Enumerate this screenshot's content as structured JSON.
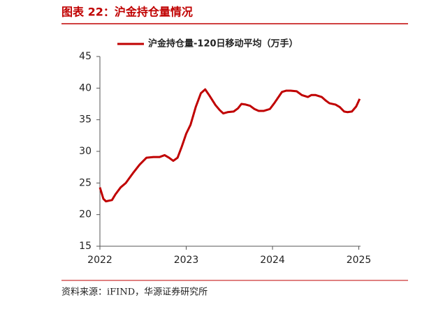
{
  "chart_data": {
    "type": "line",
    "title": "图表 22：沪金持仓量情况",
    "source": "资料来源：iFIND，华源证券研究所",
    "x": [
      2022.0,
      2022.04,
      2022.07,
      2022.14,
      2022.18,
      2022.24,
      2022.3,
      2022.38,
      2022.46,
      2022.54,
      2022.62,
      2022.69,
      2022.75,
      2022.8,
      2022.85,
      2022.9,
      2022.95,
      2023.0,
      2023.05,
      2023.11,
      2023.17,
      2023.22,
      2023.27,
      2023.34,
      2023.39,
      2023.43,
      2023.48,
      2023.55,
      2023.6,
      2023.64,
      2023.69,
      2023.74,
      2023.79,
      2023.84,
      2023.9,
      2023.97,
      2024.02,
      2024.07,
      2024.11,
      2024.16,
      2024.21,
      2024.28,
      2024.34,
      2024.41,
      2024.45,
      2024.5,
      2024.57,
      2024.62,
      2024.66,
      2024.73,
      2024.78,
      2024.83,
      2024.87,
      2024.92,
      2024.97,
      2025.01
    ],
    "series": [
      {
        "name": "沪金持仓量-120日移动平均（万手）",
        "color": "#c00000",
        "values": [
          24.3,
          22.5,
          22.1,
          22.3,
          23.2,
          24.3,
          25.0,
          26.5,
          27.9,
          29.0,
          29.1,
          29.1,
          29.4,
          29.0,
          28.5,
          29.0,
          30.8,
          32.8,
          34.2,
          37.0,
          39.2,
          39.8,
          38.8,
          37.3,
          36.5,
          36.0,
          36.2,
          36.3,
          36.8,
          37.5,
          37.4,
          37.2,
          36.7,
          36.4,
          36.4,
          36.7,
          37.6,
          38.6,
          39.4,
          39.6,
          39.6,
          39.5,
          38.9,
          38.6,
          38.9,
          38.9,
          38.6,
          38.0,
          37.6,
          37.4,
          37.0,
          36.3,
          36.2,
          36.3,
          37.1,
          38.3
        ]
      }
    ],
    "xlim": [
      2022,
      2025.02
    ],
    "xticks": [
      2022,
      2023,
      2024,
      2025
    ],
    "ylim": [
      15,
      45
    ],
    "yticks": [
      15,
      20,
      25,
      30,
      35,
      40,
      45
    ]
  }
}
